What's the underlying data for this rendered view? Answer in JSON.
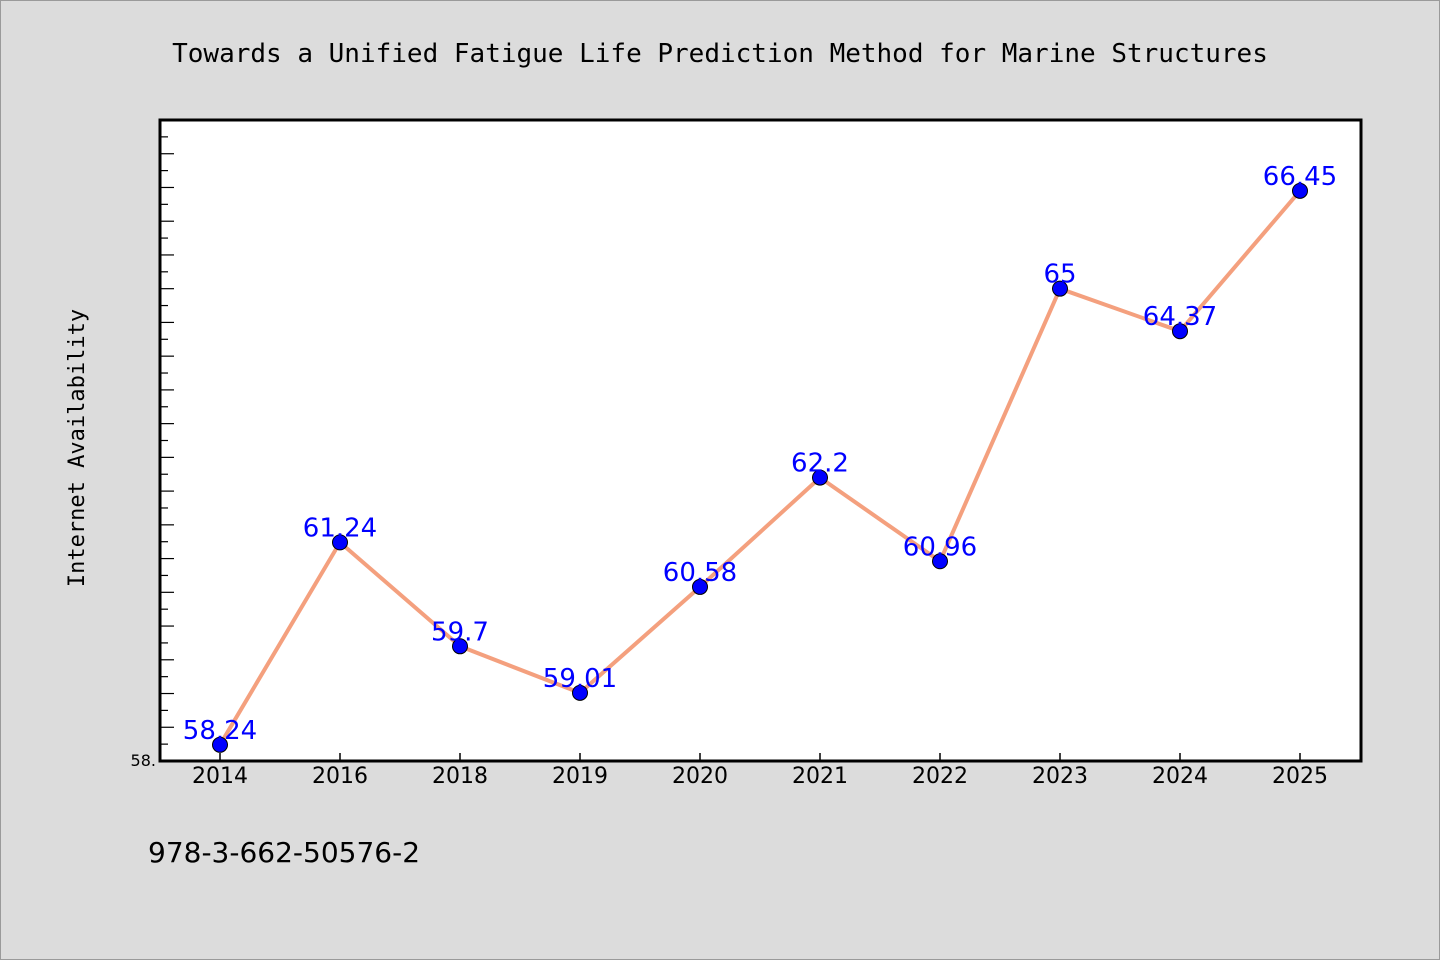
{
  "chart_data": {
    "type": "line",
    "title": "Towards a Unified Fatigue Life Prediction Method for Marine Structures",
    "ylabel": "Internet Availability",
    "xlabel": "",
    "categories": [
      "2014",
      "2016",
      "2018",
      "2019",
      "2020",
      "2021",
      "2022",
      "2023",
      "2024",
      "2025"
    ],
    "series": [
      {
        "values": [
          58.24,
          61.24,
          59.7,
          59.01,
          60.58,
          62.2,
          60.96,
          65,
          64.37,
          66.45
        ],
        "labels": [
          "58.24",
          "61.24",
          "59.7",
          "59.01",
          "60.58",
          "62.2",
          "60.96",
          "65",
          "64.37",
          "66.45"
        ]
      }
    ],
    "ylim": [
      58,
      67.5
    ],
    "y_tick_label": "58.",
    "grid": false,
    "legend": "none",
    "colors": {
      "line": "#f4a07e",
      "marker": "#0000ff",
      "data_label": "#0000ff",
      "plot_background": "#ffffff",
      "page_background": "#dcdcdc"
    }
  },
  "footer": {
    "isbn": "978-3-662-50576-2"
  }
}
